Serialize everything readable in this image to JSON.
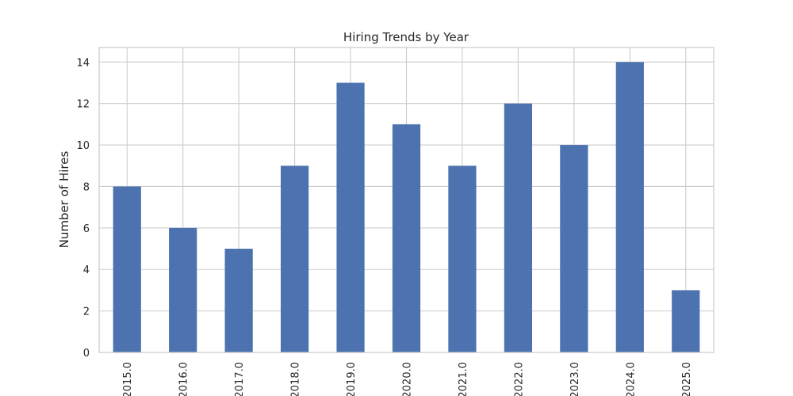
{
  "chart_data": {
    "type": "bar",
    "title": "Hiring Trends by Year",
    "xlabel": "",
    "ylabel": "Number of Hires",
    "categories": [
      "2015.0",
      "2016.0",
      "2017.0",
      "2018.0",
      "2019.0",
      "2020.0",
      "2021.0",
      "2022.0",
      "2023.0",
      "2024.0",
      "2025.0"
    ],
    "values": [
      8,
      6,
      5,
      9,
      13,
      11,
      9,
      12,
      10,
      14,
      3
    ],
    "ylim": [
      0,
      14.7
    ],
    "yticks": [
      0,
      2,
      4,
      6,
      8,
      10,
      12,
      14
    ],
    "grid": true,
    "legend": "none",
    "bar_color": "#4c72b0",
    "grid_color": "#cccccc",
    "axes_edge_color": "#cccccc",
    "tick_label_rotation": "vertical"
  }
}
